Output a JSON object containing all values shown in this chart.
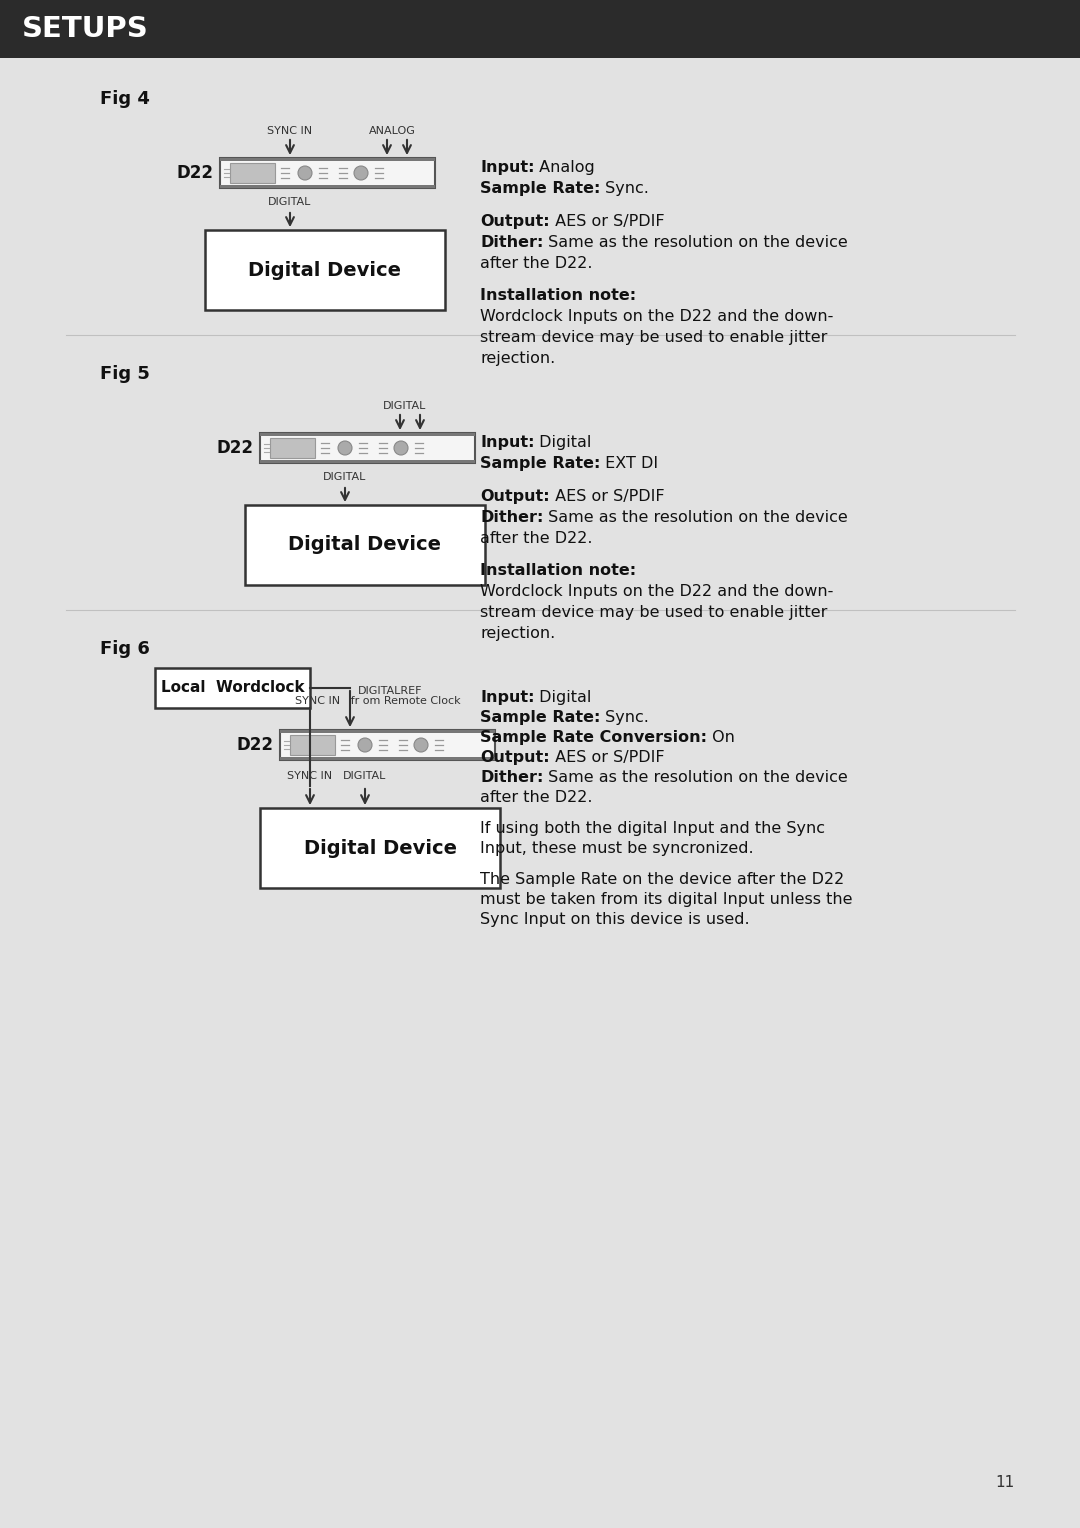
{
  "header_bg": "#2b2b2b",
  "header_text": "SETUPS",
  "header_text_color": "#ffffff",
  "content_bg": "#e2e2e2",
  "fig4": {
    "label": "Fig 4",
    "d22_label": "D22",
    "sync_in_label": "SYNC IN",
    "analog_label": "ANALOG",
    "digital_out_label": "DIGITAL",
    "device_label": "Digital Device",
    "info": [
      [
        {
          "t": "Input:",
          "b": true
        },
        {
          "t": " Analog",
          "b": false
        }
      ],
      [
        {
          "t": "Sample Rate:",
          "b": true
        },
        {
          "t": " Sync.",
          "b": false
        }
      ],
      [],
      [
        {
          "t": "Output:",
          "b": true
        },
        {
          "t": " AES or S/PDIF",
          "b": false
        }
      ],
      [
        {
          "t": "Dither:",
          "b": true
        },
        {
          "t": " Same as the resolution on the device",
          "b": false
        }
      ],
      [
        {
          "t": "after the D22.",
          "b": false
        }
      ],
      [],
      [
        {
          "t": "Installation note:",
          "b": true
        }
      ],
      [
        {
          "t": "Wordclock Inputs on the D22 and the down-",
          "b": false
        }
      ],
      [
        {
          "t": "stream device may be used to enable jitter",
          "b": false
        }
      ],
      [
        {
          "t": "rejection.",
          "b": false
        }
      ]
    ]
  },
  "fig5": {
    "label": "Fig 5",
    "d22_label": "D22",
    "digital_in_label": "DIGITAL",
    "digital_out_label": "DIGITAL",
    "device_label": "Digital Device",
    "info": [
      [
        {
          "t": "Input:",
          "b": true
        },
        {
          "t": " Digital",
          "b": false
        }
      ],
      [
        {
          "t": "Sample Rate:",
          "b": true
        },
        {
          "t": " EXT DI",
          "b": false
        }
      ],
      [],
      [
        {
          "t": "Output:",
          "b": true
        },
        {
          "t": " AES or S/PDIF",
          "b": false
        }
      ],
      [
        {
          "t": "Dither:",
          "b": true
        },
        {
          "t": " Same as the resolution on the device",
          "b": false
        }
      ],
      [
        {
          "t": "after the D22.",
          "b": false
        }
      ],
      [],
      [
        {
          "t": "Installation note:",
          "b": true
        }
      ],
      [
        {
          "t": "Wordclock Inputs on the D22 and the down-",
          "b": false
        }
      ],
      [
        {
          "t": "stream device may be used to enable jitter",
          "b": false
        }
      ],
      [
        {
          "t": "rejection.",
          "b": false
        }
      ]
    ]
  },
  "fig6": {
    "label": "Fig 6",
    "wordclock_label": "Local  Wordclock",
    "digitalref_label": "DIGITALREF",
    "syncin_remote_label": "SYNC IN   fr om Remote Clock",
    "d22_label": "D22",
    "sync_in_label": "SYNC IN",
    "digital_out_label": "DIGITAL",
    "device_label": "Digital Device",
    "info": [
      [
        {
          "t": "Input:",
          "b": true
        },
        {
          "t": " Digital",
          "b": false
        }
      ],
      [
        {
          "t": "Sample Rate:",
          "b": true
        },
        {
          "t": " Sync.",
          "b": false
        }
      ],
      [
        {
          "t": "Sample Rate Conversion:",
          "b": true
        },
        {
          "t": " On",
          "b": false
        }
      ],
      [
        {
          "t": "Output:",
          "b": true
        },
        {
          "t": " AES or S/PDIF",
          "b": false
        }
      ],
      [
        {
          "t": "Dither:",
          "b": true
        },
        {
          "t": " Same as the resolution on the device",
          "b": false
        }
      ],
      [
        {
          "t": "after the D22.",
          "b": false
        }
      ],
      [],
      [
        {
          "t": "If using both the digital Input and the Sync",
          "b": false
        }
      ],
      [
        {
          "t": "Input, these must be syncronized.",
          "b": false
        }
      ],
      [],
      [
        {
          "t": "The Sample Rate on the device after the D22",
          "b": false
        }
      ],
      [
        {
          "t": "must be taken from its digital Input unless the",
          "b": false
        }
      ],
      [
        {
          "t": "Sync Input on this device is used.",
          "b": false
        }
      ]
    ]
  },
  "page_number": "11"
}
